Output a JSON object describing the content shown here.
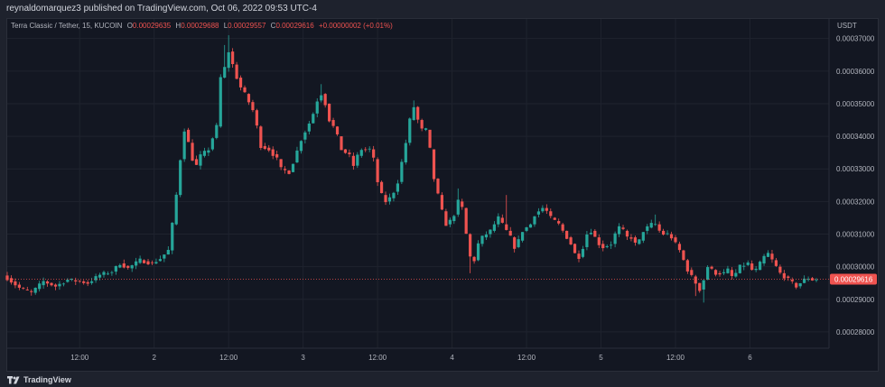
{
  "header": {
    "publisher_line": "reynaldomarquez3 published on TradingView.com, Oct 06, 2022 09:53 UTC-4"
  },
  "legend": {
    "symbol": "Terra Classic / Tether, 15, KUCOIN",
    "o_label": "O",
    "o": "0.00029635",
    "h_label": "H",
    "h": "0.00029688",
    "l_label": "L",
    "l": "0.00029557",
    "c_label": "C",
    "c": "0.00029616",
    "change": "+0.00000002 (+0.01%)"
  },
  "price_axis": {
    "unit": "USDT",
    "ticks": [
      "0.00037000",
      "0.00036000",
      "0.00035000",
      "0.00034000",
      "0.00033000",
      "0.00032000",
      "0.00031000",
      "0.00030000",
      "0.00029000",
      "0.00028000"
    ],
    "current_price": "0.00029616"
  },
  "time_axis": {
    "ticks": [
      "12:00",
      "2",
      "12:00",
      "3",
      "12:00",
      "4",
      "12:00",
      "5",
      "12:00",
      "6"
    ]
  },
  "footer": {
    "brand": "TradingView"
  },
  "colors": {
    "up": "#26a69a",
    "down": "#ef5350",
    "background": "#131722",
    "grid": "#1f232e",
    "price_label_bg": "#ef5350"
  },
  "chart_data": {
    "type": "candlestick",
    "title": "Terra Classic / Tether, 15, KUCOIN",
    "ylabel": "USDT",
    "ylim": [
      0.000275,
      0.000376
    ],
    "grid": true,
    "x_ticks": [
      "12:00",
      "2",
      "12:00",
      "3",
      "12:00",
      "4",
      "12:00",
      "5",
      "12:00",
      "6"
    ],
    "last_price": 0.00029616,
    "path": [
      [
        0,
        0.0002965
      ],
      [
        3,
        0.0002935
      ],
      [
        6,
        0.000292
      ],
      [
        9,
        0.0002955
      ],
      [
        12,
        0.000294
      ],
      [
        15,
        0.000296
      ],
      [
        18,
        0.0002955
      ],
      [
        20,
        0.000295
      ],
      [
        23,
        0.0002975
      ],
      [
        26,
        0.0002985
      ],
      [
        28,
        0.000301
      ],
      [
        30,
        0.0002995
      ],
      [
        33,
        0.000302
      ],
      [
        36,
        0.000301
      ],
      [
        38,
        0.0003025
      ],
      [
        40,
        0.000305
      ],
      [
        41,
        0.000313
      ],
      [
        42,
        0.000322
      ],
      [
        43,
        0.000333
      ],
      [
        44,
        0.000342
      ],
      [
        45,
        0.000338
      ],
      [
        46,
        0.000333
      ],
      [
        47,
        0.000331
      ],
      [
        48,
        0.000334
      ],
      [
        50,
        0.000336
      ],
      [
        52,
        0.000343
      ],
      [
        53,
        0.000358
      ],
      [
        54,
        0.000361
      ],
      [
        55,
        0.000366
      ],
      [
        56,
        0.000362
      ],
      [
        57,
        0.000358
      ],
      [
        58,
        0.000355
      ],
      [
        59,
        0.000353
      ],
      [
        61,
        0.000348
      ],
      [
        62,
        0.000343
      ],
      [
        63,
        0.000337
      ],
      [
        65,
        0.000336
      ],
      [
        67,
        0.000333
      ],
      [
        68,
        0.00033
      ],
      [
        70,
        0.000329
      ],
      [
        71,
        0.000332
      ],
      [
        73,
        0.000339
      ],
      [
        75,
        0.000344
      ],
      [
        76,
        0.000347
      ],
      [
        77,
        0.000351
      ],
      [
        78,
        0.000353
      ],
      [
        79,
        0.00035
      ],
      [
        80,
        0.000345
      ],
      [
        81,
        0.000343
      ],
      [
        82,
        0.00034
      ],
      [
        83,
        0.000336
      ],
      [
        85,
        0.000334
      ],
      [
        86,
        0.000331
      ],
      [
        87,
        0.000334
      ],
      [
        88,
        0.000336
      ],
      [
        90,
        0.000336
      ],
      [
        91,
        0.000333
      ],
      [
        92,
        0.000326
      ],
      [
        93,
        0.000322
      ],
      [
        94,
        0.00032
      ],
      [
        95,
        0.000321
      ],
      [
        96,
        0.000323
      ],
      [
        97,
        0.000326
      ],
      [
        98,
        0.000332
      ],
      [
        99,
        0.000338
      ],
      [
        100,
        0.000345
      ],
      [
        101,
        0.000349
      ],
      [
        102,
        0.000345
      ],
      [
        103,
        0.000342
      ],
      [
        104,
        0.000342
      ],
      [
        105,
        0.000336
      ],
      [
        106,
        0.000327
      ],
      [
        107,
        0.000322
      ],
      [
        108,
        0.000317
      ],
      [
        109,
        0.000313
      ],
      [
        110,
        0.000314
      ],
      [
        111,
        0.000316
      ],
      [
        112,
        0.00032
      ],
      [
        113,
        0.000318
      ],
      [
        114,
        0.00031
      ],
      [
        115,
        0.000303
      ],
      [
        116,
        0.000302
      ],
      [
        117,
        0.000307
      ],
      [
        118,
        0.000309
      ],
      [
        120,
        0.000311
      ],
      [
        122,
        0.000315
      ],
      [
        123,
        0.000313
      ],
      [
        124,
        0.000311
      ],
      [
        125,
        0.000309
      ],
      [
        126,
        0.000306
      ],
      [
        127,
        0.000308
      ],
      [
        128,
        0.000311
      ],
      [
        130,
        0.000313
      ],
      [
        131,
        0.000316
      ],
      [
        133,
        0.000318
      ],
      [
        134,
        0.000317
      ],
      [
        135,
        0.000315
      ],
      [
        136,
        0.000314
      ],
      [
        137,
        0.000313
      ],
      [
        138,
        0.000311
      ],
      [
        139,
        0.000309
      ],
      [
        140,
        0.000307
      ],
      [
        141,
        0.000304
      ],
      [
        142,
        0.000303
      ],
      [
        143,
        0.000306
      ],
      [
        144,
        0.00031
      ],
      [
        145,
        0.000311
      ],
      [
        146,
        0.000309
      ],
      [
        147,
        0.000307
      ],
      [
        148,
        0.000306
      ],
      [
        150,
        0.000307
      ],
      [
        151,
        0.00031
      ],
      [
        152,
        0.000312
      ],
      [
        153,
        0.000311
      ],
      [
        154,
        0.000309
      ],
      [
        155,
        0.000309
      ],
      [
        156,
        0.000307
      ],
      [
        157,
        0.000308
      ],
      [
        158,
        0.000311
      ],
      [
        159,
        0.000312
      ],
      [
        160,
        0.000313
      ],
      [
        161,
        0.000313
      ],
      [
        162,
        0.000311
      ],
      [
        163,
        0.00031
      ],
      [
        164,
        0.00031
      ],
      [
        165,
        0.000309
      ],
      [
        166,
        0.000307
      ],
      [
        167,
        0.000305
      ],
      [
        168,
        0.000302
      ],
      [
        169,
        0.000299
      ],
      [
        170,
        0.000297
      ],
      [
        171,
        0.000295
      ],
      [
        172,
        0.000293
      ],
      [
        173,
        0.000296
      ],
      [
        174,
        0.0003
      ],
      [
        175,
        0.000299
      ],
      [
        176,
        0.000298
      ],
      [
        178,
        0.000298
      ],
      [
        179,
        0.000299
      ],
      [
        180,
        0.000297
      ],
      [
        181,
        0.000298
      ],
      [
        182,
        0.0003
      ],
      [
        184,
        0.000301
      ],
      [
        185,
        0.000299
      ],
      [
        186,
        0.000299
      ],
      [
        187,
        0.000301
      ],
      [
        188,
        0.000303
      ],
      [
        189,
        0.000304
      ],
      [
        190,
        0.000302
      ],
      [
        191,
        0.0003
      ],
      [
        192,
        0.000298
      ],
      [
        193,
        0.000297
      ],
      [
        194,
        0.000296
      ],
      [
        195,
        0.000295
      ],
      [
        196,
        0.000294
      ],
      [
        197,
        0.000295
      ],
      [
        198,
        0.000296
      ],
      [
        199,
        0.0002965
      ],
      [
        200,
        0.000296
      ],
      [
        201,
        0.0002962
      ]
    ],
    "wick_spikes": [
      [
        55,
        0.000371
      ],
      [
        54,
        0.000368
      ],
      [
        64,
        0.000338
      ],
      [
        78,
        0.000356
      ],
      [
        101,
        0.000351
      ],
      [
        112,
        0.000324
      ],
      [
        115,
        0.000298
      ],
      [
        124,
        0.000322
      ],
      [
        173,
        0.000289
      ],
      [
        171,
        0.000291
      ],
      [
        161,
        0.000316
      ]
    ]
  }
}
